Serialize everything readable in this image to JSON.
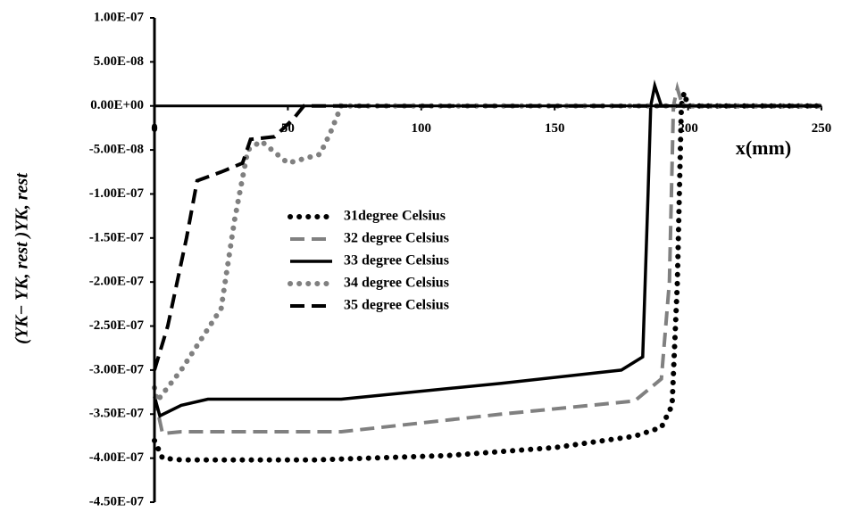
{
  "chart_data": {
    "type": "line",
    "x_label": "x(mm)",
    "y_label": "(YK− YK, rest )YK, rest",
    "xlim": [
      0,
      250
    ],
    "xticks": [
      0,
      50,
      100,
      150,
      200,
      250
    ],
    "ylim": [
      -4.5e-07,
      1e-07
    ],
    "yticks": [
      {
        "value": 1e-07,
        "label": "1.00E-07"
      },
      {
        "value": 5e-08,
        "label": "5.00E-08"
      },
      {
        "value": 0,
        "label": "0.00E+00"
      },
      {
        "value": -5e-08,
        "label": "-5.00E-08"
      },
      {
        "value": -1e-07,
        "label": "-1.00E-07"
      },
      {
        "value": -1.5e-07,
        "label": "-1.50E-07"
      },
      {
        "value": -2e-07,
        "label": "-2.00E-07"
      },
      {
        "value": -2.5e-07,
        "label": "-2.50E-07"
      },
      {
        "value": -3e-07,
        "label": "-3.00E-07"
      },
      {
        "value": -3.5e-07,
        "label": "-3.50E-07"
      },
      {
        "value": -4e-07,
        "label": "-4.00E-07"
      },
      {
        "value": -4.5e-07,
        "label": "-4.50E-07"
      }
    ],
    "series": [
      {
        "name": "31degree Celsius",
        "color": "#000000",
        "style": "dotted",
        "x": [
          0,
          3,
          10,
          60,
          110,
          150,
          180,
          190,
          194,
          196,
          197.5,
          198.5,
          200,
          250
        ],
        "values": [
          -3.8e-07,
          -4e-07,
          -4.02e-07,
          -4.02e-07,
          -3.97e-07,
          -3.88e-07,
          -3.75e-07,
          -3.65e-07,
          -3.4e-07,
          -2e-07,
          0,
          1.5e-08,
          0,
          0
        ]
      },
      {
        "name": "32 degree Celsius",
        "color": "#808080",
        "style": "dashed",
        "x": [
          0,
          3,
          10,
          70,
          130,
          180,
          190,
          193,
          194.5,
          196,
          198,
          250
        ],
        "values": [
          -3.3e-07,
          -3.72e-07,
          -3.7e-07,
          -3.7e-07,
          -3.5e-07,
          -3.35e-07,
          -3.1e-07,
          -2e-07,
          0,
          2e-08,
          0,
          0
        ]
      },
      {
        "name": "33 degree Celsius",
        "color": "#000000",
        "style": "solid",
        "x": [
          0,
          2,
          10,
          20,
          70,
          130,
          175,
          183,
          185,
          186,
          187.5,
          190,
          250
        ],
        "values": [
          -3.3e-07,
          -3.52e-07,
          -3.4e-07,
          -3.33e-07,
          -3.33e-07,
          -3.15e-07,
          -3e-07,
          -2.85e-07,
          -1e-07,
          0,
          2.3e-08,
          0,
          0
        ]
      },
      {
        "name": "34 degree Celsius",
        "color": "#808080",
        "style": "dotted",
        "x": [
          0,
          1,
          10,
          25,
          30,
          35,
          40,
          50,
          62,
          66,
          70,
          250
        ],
        "values": [
          -3.2e-07,
          -3.35e-07,
          -3e-07,
          -2.3e-07,
          -1.3e-07,
          -5e-08,
          -4e-08,
          -6.5e-08,
          -5.5e-08,
          -3e-08,
          0,
          0
        ]
      },
      {
        "name": "35 degree Celsius",
        "color": "#000000",
        "style": "dashed",
        "x": [
          0,
          5,
          12,
          16,
          25,
          33,
          36,
          45,
          52,
          56,
          250
        ],
        "values": [
          -3e-07,
          -2.5e-07,
          -1.5e-07,
          -8.5e-08,
          -7.5e-08,
          -6.5e-08,
          -3.8e-08,
          -3.5e-08,
          -1.5e-08,
          0,
          0
        ]
      }
    ]
  }
}
